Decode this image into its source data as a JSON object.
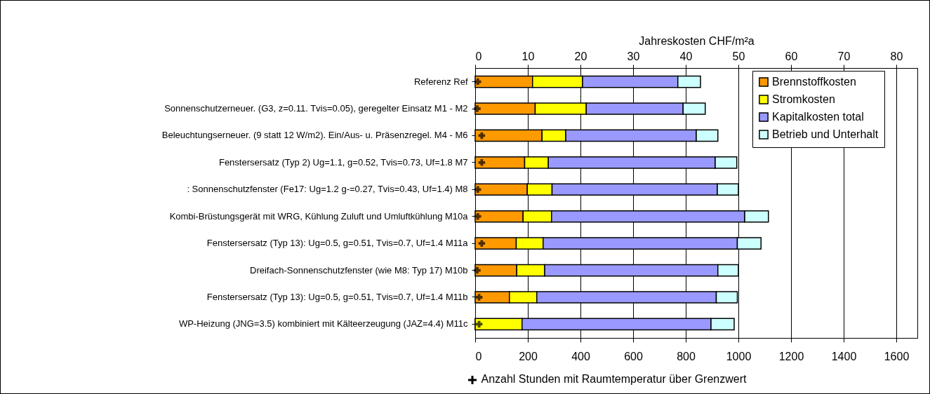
{
  "chart_data": {
    "type": "bar",
    "orientation": "horizontal",
    "stacked": true,
    "x2label": "Jahreskosten  CHF/m²a",
    "categories": [
      "Referenz    Ref",
      "Sonnenschutzerneuer. (G3, z=0.11. Tvis=0.05), geregelter Einsatz    M1 - M2",
      "Beleuchtungserneuer. (9 statt 12 W/m2). Ein/Aus- u. Präsenzregel.    M4 - M6",
      "Fenstersersatz  (Typ 2) Ug=1.1, g=0.52, Tvis=0.73, Uf=1.8    M7",
      ": Sonnenschutzfenster (Fe17: Ug=1.2 g-=0.27,  Tvis=0.43, Uf=1.4)    M8",
      "Kombi-Brüstungsgerät mit WRG, Kühlung Zuluft und Umluftkühlung    M10a",
      "Fenstersersatz (Typ 13):  Ug=0.5, g=0.51, Tvis=0.7, Uf=1.4    M11a",
      "Dreifach-Sonnenschutzfenster (wie M8: Typ 17)    M10b",
      "Fenstersersatz (Typ 13):  Ug=0.5, g=0.51, Tvis=0.7, Uf=1.4    M11b",
      "WP-Heizung (JNG=3.5) kombiniert mit Kälteerzeugung (JAZ=4.4)    M11c"
    ],
    "series": [
      {
        "name": "Brennstoffkosten",
        "color": "#ff9900",
        "axis": "x2",
        "values": [
          10.9,
          11.4,
          12.7,
          9.4,
          9.9,
          9.1,
          7.8,
          7.9,
          6.5,
          0
        ]
      },
      {
        "name": "Stromkosten",
        "color": "#ffff00",
        "axis": "x2",
        "values": [
          9.5,
          9.7,
          4.5,
          4.5,
          4.7,
          5.4,
          5.1,
          5.3,
          5.2,
          8.9
        ]
      },
      {
        "name": "Kapitalkosten total",
        "color": "#9999ff",
        "axis": "x2",
        "values": [
          18.1,
          18.4,
          24.8,
          31.7,
          31.4,
          36.7,
          36.9,
          32.9,
          34.1,
          35.9
        ]
      },
      {
        "name": "Betrieb und Unterhalt",
        "color": "#ccffff",
        "axis": "x2",
        "values": [
          4.3,
          4.2,
          4.1,
          4.1,
          4.0,
          4.5,
          4.5,
          3.9,
          4.0,
          4.4
        ]
      },
      {
        "type": "scatter",
        "marker": "cross",
        "color": "#000000",
        "values": [
          10,
          8,
          25,
          25,
          10,
          10,
          25,
          8,
          15,
          15
        ]
      }
    ],
    "xlabel": "Anzahl Stunden mit Raumtemperatur über Grenzwert",
    "xlim": [
      0,
      1680
    ],
    "xticks": [
      0,
      200,
      400,
      600,
      800,
      1000,
      1200,
      1400,
      1600
    ],
    "x2lim": [
      0,
      84
    ],
    "x2ticks": [
      0,
      10,
      20,
      30,
      40,
      50,
      60,
      70,
      80
    ],
    "grid": "x",
    "legend": "top right"
  }
}
